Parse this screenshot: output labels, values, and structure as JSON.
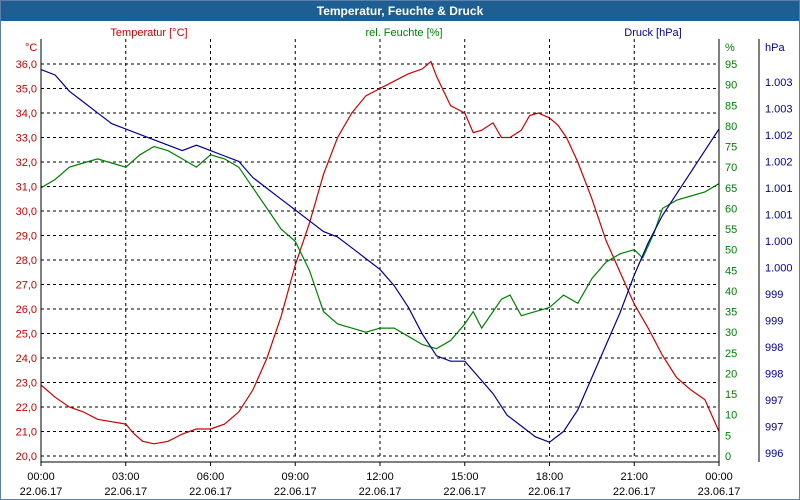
{
  "window": {
    "title": "Temperatur, Feuchte & Druck"
  },
  "chart_data": {
    "type": "line",
    "title": "Temperatur, Feuchte & Druck",
    "grid": true,
    "colors": {
      "temperature": "#cc0000",
      "humidity": "#008000",
      "pressure": "#000099",
      "title_bar": "#1e5f93"
    },
    "axes": {
      "temperature": {
        "label": "Temperatur [°C]",
        "unit": "°C",
        "range": [
          20.0,
          37.0
        ],
        "ticks": [
          "20,0",
          "21,0",
          "22,0",
          "23,0",
          "24,0",
          "25,0",
          "26,0",
          "27,0",
          "28,0",
          "29,0",
          "30,0",
          "31,0",
          "32,0",
          "33,0",
          "34,0",
          "35,0",
          "36,0"
        ]
      },
      "humidity": {
        "label": "rel. Feuchte [%]",
        "unit": "%",
        "range": [
          0,
          100
        ],
        "ticks": [
          "0",
          "5",
          "10",
          "15",
          "20",
          "25",
          "30",
          "35",
          "40",
          "45",
          "50",
          "55",
          "60",
          "65",
          "70",
          "75",
          "80",
          "85",
          "90",
          "95"
        ]
      },
      "pressure": {
        "label": "Druck [hPa]",
        "unit": "hPa",
        "range": [
          996,
          1003.5
        ],
        "ticks": [
          "996",
          "997",
          "997",
          "998",
          "998",
          "999",
          "999",
          "1.000",
          "1.000",
          "1.001",
          "1.001",
          "1.002",
          "1.002",
          "1.003",
          "1.003"
        ]
      }
    },
    "x_ticks": [
      {
        "time": "00:00",
        "date": "22.06.17"
      },
      {
        "time": "03:00",
        "date": "22.06.17"
      },
      {
        "time": "06:00",
        "date": "22.06.17"
      },
      {
        "time": "09:00",
        "date": "22.06.17"
      },
      {
        "time": "12:00",
        "date": "22.06.17"
      },
      {
        "time": "15:00",
        "date": "22.06.17"
      },
      {
        "time": "18:00",
        "date": "22.06.17"
      },
      {
        "time": "21:00",
        "date": "22.06.17"
      },
      {
        "time": "00:00",
        "date": "23.06.17"
      }
    ],
    "series": [
      {
        "name": "Temperatur [°C]",
        "key": "temperature",
        "axis": "temperature",
        "points": [
          [
            0,
            22.9
          ],
          [
            0.5,
            22.4
          ],
          [
            1,
            22.0
          ],
          [
            1.5,
            21.8
          ],
          [
            2,
            21.5
          ],
          [
            2.5,
            21.4
          ],
          [
            3,
            21.3
          ],
          [
            3.3,
            20.9
          ],
          [
            3.6,
            20.6
          ],
          [
            4,
            20.5
          ],
          [
            4.5,
            20.6
          ],
          [
            5,
            20.9
          ],
          [
            5.5,
            21.1
          ],
          [
            6,
            21.1
          ],
          [
            6.5,
            21.3
          ],
          [
            7,
            21.8
          ],
          [
            7.5,
            22.7
          ],
          [
            8,
            24.0
          ],
          [
            8.5,
            25.7
          ],
          [
            9,
            27.8
          ],
          [
            9.5,
            29.5
          ],
          [
            10,
            31.5
          ],
          [
            10.5,
            33.0
          ],
          [
            11,
            34.0
          ],
          [
            11.5,
            34.7
          ],
          [
            12,
            35.0
          ],
          [
            12.5,
            35.3
          ],
          [
            13,
            35.6
          ],
          [
            13.5,
            35.8
          ],
          [
            13.8,
            36.1
          ],
          [
            14,
            35.5
          ],
          [
            14.5,
            34.3
          ],
          [
            15,
            34.0
          ],
          [
            15.3,
            33.2
          ],
          [
            15.6,
            33.3
          ],
          [
            16,
            33.6
          ],
          [
            16.3,
            33.0
          ],
          [
            16.6,
            33.0
          ],
          [
            17,
            33.3
          ],
          [
            17.3,
            33.9
          ],
          [
            17.6,
            34.0
          ],
          [
            18,
            33.8
          ],
          [
            18.3,
            33.5
          ],
          [
            18.6,
            33.0
          ],
          [
            19,
            32.0
          ],
          [
            19.5,
            30.5
          ],
          [
            20,
            28.8
          ],
          [
            20.5,
            27.5
          ],
          [
            21,
            26.2
          ],
          [
            21.5,
            25.2
          ],
          [
            22,
            24.1
          ],
          [
            22.5,
            23.2
          ],
          [
            23,
            22.7
          ],
          [
            23.5,
            22.3
          ],
          [
            24,
            21.0
          ]
        ]
      },
      {
        "name": "rel. Feuchte [%]",
        "key": "humidity",
        "axis": "humidity",
        "points": [
          [
            0,
            65
          ],
          [
            0.5,
            67
          ],
          [
            1,
            70
          ],
          [
            1.5,
            71
          ],
          [
            2,
            72
          ],
          [
            2.5,
            71
          ],
          [
            3,
            70
          ],
          [
            3.5,
            73
          ],
          [
            4,
            75
          ],
          [
            4.5,
            74
          ],
          [
            5,
            72
          ],
          [
            5.5,
            70
          ],
          [
            6,
            73
          ],
          [
            6.5,
            72
          ],
          [
            7,
            70
          ],
          [
            7.5,
            65
          ],
          [
            8,
            60
          ],
          [
            8.5,
            55
          ],
          [
            9,
            52
          ],
          [
            9.5,
            45
          ],
          [
            10,
            35
          ],
          [
            10.5,
            32
          ],
          [
            11,
            31
          ],
          [
            11.5,
            30
          ],
          [
            12,
            31
          ],
          [
            12.5,
            31
          ],
          [
            13,
            29
          ],
          [
            13.5,
            27
          ],
          [
            14,
            26
          ],
          [
            14.5,
            28
          ],
          [
            15,
            32
          ],
          [
            15.3,
            35
          ],
          [
            15.6,
            31
          ],
          [
            16,
            35
          ],
          [
            16.3,
            38
          ],
          [
            16.6,
            39
          ],
          [
            17,
            34
          ],
          [
            17.5,
            35
          ],
          [
            18,
            36
          ],
          [
            18.5,
            39
          ],
          [
            19,
            37
          ],
          [
            19.5,
            43
          ],
          [
            20,
            47
          ],
          [
            20.5,
            49
          ],
          [
            21,
            50
          ],
          [
            21.3,
            48
          ],
          [
            21.7,
            54
          ],
          [
            22,
            60
          ],
          [
            22.5,
            62
          ],
          [
            23,
            63
          ],
          [
            23.5,
            64
          ],
          [
            24,
            66
          ]
        ]
      },
      {
        "name": "Druck [hPa]",
        "key": "pressure",
        "axis": "pressure",
        "points": [
          [
            0,
            1003.1
          ],
          [
            0.5,
            1003.0
          ],
          [
            1,
            1002.7
          ],
          [
            1.5,
            1002.5
          ],
          [
            2,
            1002.3
          ],
          [
            2.5,
            1002.1
          ],
          [
            3,
            1002.0
          ],
          [
            3.5,
            1001.9
          ],
          [
            4,
            1001.8
          ],
          [
            4.5,
            1001.7
          ],
          [
            5,
            1001.6
          ],
          [
            5.5,
            1001.7
          ],
          [
            6,
            1001.6
          ],
          [
            6.5,
            1001.5
          ],
          [
            7,
            1001.4
          ],
          [
            7.5,
            1001.1
          ],
          [
            8,
            1000.9
          ],
          [
            8.5,
            1000.7
          ],
          [
            9,
            1000.5
          ],
          [
            9.5,
            1000.3
          ],
          [
            10,
            1000.1
          ],
          [
            10.5,
            1000.0
          ],
          [
            11,
            999.8
          ],
          [
            11.5,
            999.6
          ],
          [
            12,
            999.4
          ],
          [
            12.5,
            999.1
          ],
          [
            13,
            998.7
          ],
          [
            13.5,
            998.2
          ],
          [
            14,
            997.8
          ],
          [
            14.5,
            997.7
          ],
          [
            15,
            997.7
          ],
          [
            15.5,
            997.4
          ],
          [
            16,
            997.1
          ],
          [
            16.5,
            996.7
          ],
          [
            17,
            996.5
          ],
          [
            17.5,
            996.3
          ],
          [
            18,
            996.2
          ],
          [
            18.5,
            996.4
          ],
          [
            19,
            996.8
          ],
          [
            19.5,
            997.4
          ],
          [
            20,
            998.0
          ],
          [
            20.5,
            998.6
          ],
          [
            21,
            999.3
          ],
          [
            21.5,
            999.9
          ],
          [
            22,
            1000.4
          ],
          [
            22.5,
            1000.8
          ],
          [
            23,
            1001.2
          ],
          [
            23.5,
            1001.6
          ],
          [
            24,
            1002.0
          ]
        ]
      }
    ]
  }
}
